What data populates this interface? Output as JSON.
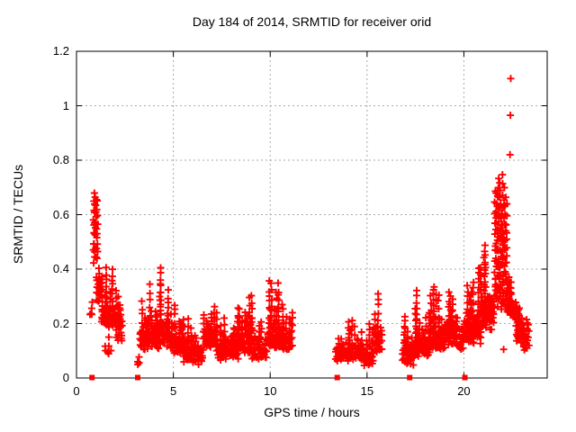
{
  "chart_data": {
    "type": "scatter",
    "title": "Day 184 of 2014, SRMTID for receiver orid",
    "xlabel": "GPS time / hours",
    "ylabel": "SRMTID / TECUs",
    "xlim": [
      0,
      24.3
    ],
    "ylim": [
      0,
      1.2
    ],
    "x_ticks": [
      0,
      5,
      10,
      15,
      20
    ],
    "y_ticks": [
      0,
      0.2,
      0.4,
      0.6,
      0.8,
      1,
      1.2
    ],
    "grid": "dashed gray at major ticks, mirrored inward black tick marks on all four sides",
    "legend": "none",
    "marker": "plus",
    "marker_color": "#ff0000",
    "grid_color": "#aaaaaa",
    "frame_color": "#000000",
    "background_color": "#ffffff",
    "series": [
      {
        "name": "SRMTID",
        "marker": "plus",
        "color": "#ff0000",
        "segments_format": "[t_start_h, t_end_h, value_min, value_max, column_spacing_h, mode(0=band,1=tall-strand,2=sparse)]",
        "segments": [
          [
            0.68,
            0.8,
            0.23,
            0.32,
            0.06,
            2
          ],
          [
            0.88,
            1.08,
            0.42,
            0.685,
            0.05,
            1
          ],
          [
            1.05,
            1.32,
            0.28,
            0.52,
            0.055,
            0
          ],
          [
            1.3,
            2.28,
            0.19,
            0.43,
            0.05,
            0
          ],
          [
            1.5,
            1.85,
            0.09,
            0.18,
            0.09,
            2
          ],
          [
            2.05,
            2.4,
            0.13,
            0.41,
            0.07,
            0
          ],
          [
            3.14,
            3.3,
            0.05,
            0.12,
            0.08,
            2
          ],
          [
            3.28,
            3.78,
            0.1,
            0.32,
            0.055,
            0
          ],
          [
            3.78,
            4.35,
            0.11,
            0.4,
            0.055,
            0
          ],
          [
            4.35,
            4.85,
            0.12,
            0.42,
            0.055,
            0
          ],
          [
            4.85,
            5.55,
            0.09,
            0.3,
            0.055,
            0
          ],
          [
            5.55,
            6.55,
            0.06,
            0.26,
            0.05,
            0
          ],
          [
            6.55,
            7.25,
            0.11,
            0.37,
            0.05,
            0
          ],
          [
            7.25,
            8.35,
            0.07,
            0.3,
            0.05,
            0
          ],
          [
            8.35,
            9.05,
            0.09,
            0.35,
            0.055,
            0
          ],
          [
            9.05,
            9.85,
            0.07,
            0.24,
            0.055,
            0
          ],
          [
            9.85,
            10.65,
            0.11,
            0.38,
            0.05,
            0
          ],
          [
            10.65,
            11.2,
            0.1,
            0.3,
            0.06,
            0
          ],
          [
            13.38,
            14.05,
            0.06,
            0.26,
            0.055,
            0
          ],
          [
            14.05,
            14.85,
            0.07,
            0.27,
            0.05,
            0
          ],
          [
            14.85,
            15.35,
            0.05,
            0.21,
            0.055,
            0
          ],
          [
            15.35,
            15.8,
            0.1,
            0.33,
            0.06,
            0
          ],
          [
            16.85,
            17.45,
            0.05,
            0.28,
            0.055,
            0
          ],
          [
            17.45,
            18.25,
            0.08,
            0.33,
            0.05,
            0
          ],
          [
            18.25,
            19.05,
            0.1,
            0.35,
            0.05,
            0
          ],
          [
            19.05,
            19.65,
            0.12,
            0.4,
            0.05,
            0
          ],
          [
            19.65,
            20.0,
            0.1,
            0.3,
            0.08,
            2
          ],
          [
            20.0,
            20.9,
            0.13,
            0.43,
            0.05,
            0
          ],
          [
            20.9,
            21.6,
            0.18,
            0.5,
            0.05,
            0
          ],
          [
            21.6,
            22.25,
            0.25,
            0.77,
            0.07,
            1
          ],
          [
            22.25,
            22.7,
            0.22,
            0.45,
            0.05,
            0
          ],
          [
            22.7,
            23.1,
            0.13,
            0.4,
            0.055,
            0
          ],
          [
            23.1,
            23.35,
            0.1,
            0.28,
            0.08,
            2
          ]
        ],
        "outlier_points": [
          [
            22.38,
            0.82
          ],
          [
            22.4,
            0.965
          ],
          [
            22.42,
            1.1
          ],
          [
            22.05,
            0.105
          ],
          [
            22.95,
            0.13
          ],
          [
            23.2,
            0.11
          ],
          [
            3.16,
            0.06
          ],
          [
            6.3,
            0.05
          ]
        ]
      },
      {
        "name": "gap-markers",
        "marker": "filled-square",
        "color": "#ff0000",
        "points_h_at_zero": [
          0.8,
          3.16,
          13.46,
          17.2,
          20.05
        ]
      }
    ]
  }
}
